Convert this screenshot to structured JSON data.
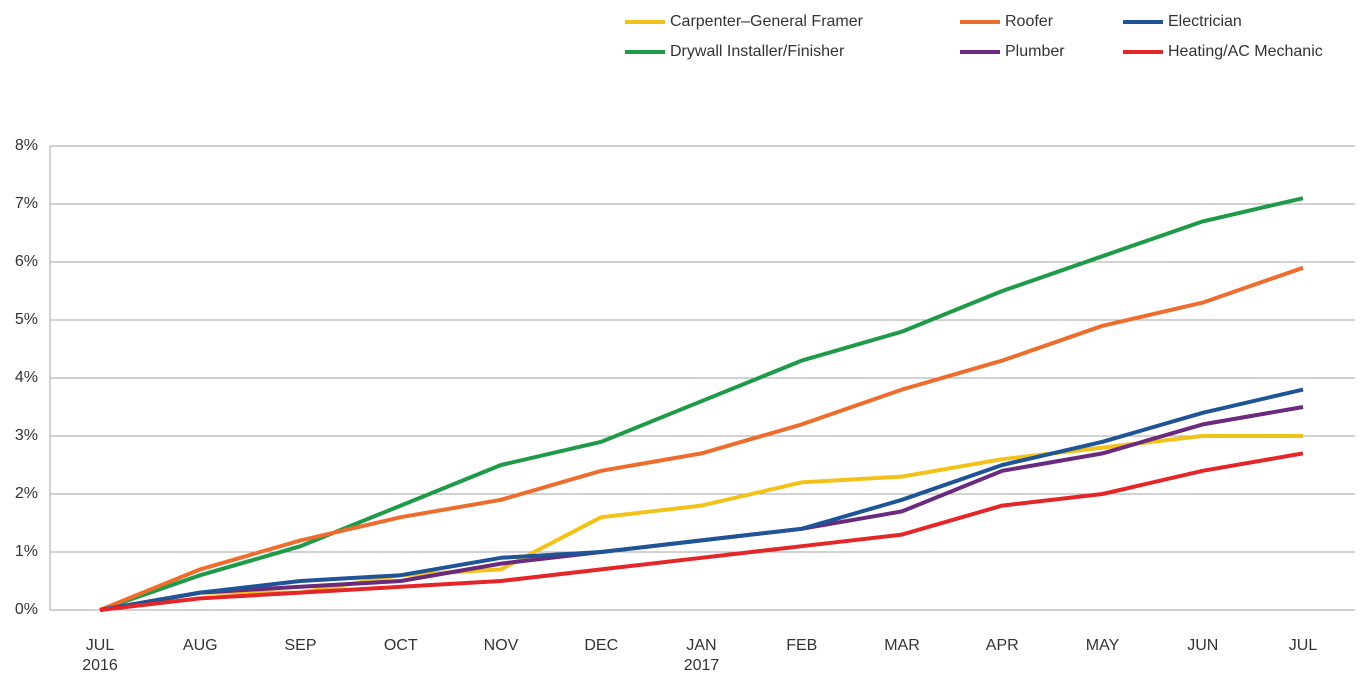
{
  "chart_data": {
    "type": "line",
    "categories": [
      "JUL 2016",
      "AUG",
      "SEP",
      "OCT",
      "NOV",
      "DEC",
      "JAN 2017",
      "FEB",
      "MAR",
      "APR",
      "MAY",
      "JUN",
      "JUL"
    ],
    "series": [
      {
        "name": "Carpenter–General Framer",
        "color": "#f2c218",
        "values": [
          0,
          0.3,
          0.3,
          0.6,
          0.7,
          1.6,
          1.8,
          2.2,
          2.3,
          2.6,
          2.8,
          3.0,
          3.0
        ]
      },
      {
        "name": "Drywall Installer/Finisher",
        "color": "#1e9a48",
        "values": [
          0,
          0.6,
          1.1,
          1.8,
          2.5,
          2.9,
          3.6,
          4.3,
          4.8,
          5.5,
          6.1,
          6.7,
          7.1
        ]
      },
      {
        "name": "Roofer",
        "color": "#ec6d2e",
        "values": [
          0,
          0.7,
          1.2,
          1.6,
          1.9,
          2.4,
          2.7,
          3.2,
          3.8,
          4.3,
          4.9,
          5.3,
          5.9
        ]
      },
      {
        "name": "Plumber",
        "color": "#6a2a7e",
        "values": [
          0,
          0.3,
          0.4,
          0.5,
          0.8,
          1.0,
          1.2,
          1.4,
          1.7,
          2.4,
          2.7,
          3.2,
          3.5
        ]
      },
      {
        "name": "Electrician",
        "color": "#1f5597",
        "values": [
          0,
          0.3,
          0.5,
          0.6,
          0.9,
          1.0,
          1.2,
          1.4,
          1.9,
          2.5,
          2.9,
          3.4,
          3.8
        ]
      },
      {
        "name": "Heating/AC Mechanic",
        "color": "#e42629",
        "values": [
          0,
          0.2,
          0.3,
          0.4,
          0.5,
          0.7,
          0.9,
          1.1,
          1.3,
          1.8,
          2.0,
          2.4,
          2.7
        ]
      }
    ],
    "ylim": [
      0,
      8
    ],
    "yticks": [
      {
        "value": 0,
        "label": "0%"
      },
      {
        "value": 1,
        "label": "1%"
      },
      {
        "value": 2,
        "label": "2%"
      },
      {
        "value": 3,
        "label": "3%"
      },
      {
        "value": 4,
        "label": "4%"
      },
      {
        "value": 5,
        "label": "5%"
      },
      {
        "value": 6,
        "label": "6%"
      },
      {
        "value": 7,
        "label": "7%"
      },
      {
        "value": 8,
        "label": "8%"
      }
    ],
    "grid": true,
    "legend": "top-right"
  }
}
